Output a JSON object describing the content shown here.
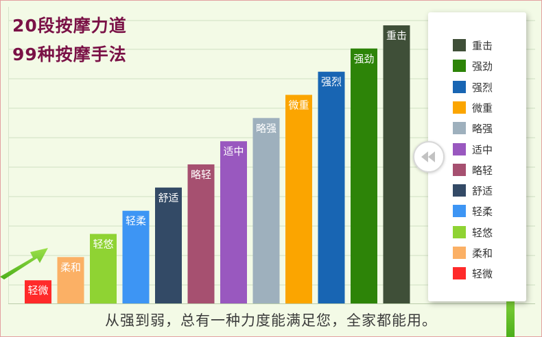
{
  "headline": {
    "line1": "20段按摩力道",
    "line2": "99种按摩手法"
  },
  "caption": "从强到弱，总有一种力度能满足您，全家都能用。",
  "chart_data": {
    "type": "bar",
    "categories": [
      "轻微",
      "柔和",
      "轻悠",
      "轻柔",
      "舒适",
      "略轻",
      "适中",
      "略强",
      "微重",
      "强烈",
      "强劲",
      "重击"
    ],
    "values": [
      1,
      2,
      3,
      4,
      5,
      6,
      7,
      8,
      9,
      10,
      11,
      12
    ],
    "colors": [
      "#ff2a2a",
      "#fbb065",
      "#8fd333",
      "#3d95f4",
      "#334a66",
      "#a65070",
      "#9958bf",
      "#9eb0bd",
      "#fba500",
      "#1865b3",
      "#2d8408",
      "#3f4f38"
    ],
    "legend": {
      "placement": "right",
      "entries": [
        "重击",
        "强劲",
        "强烈",
        "微重",
        "略强",
        "适中",
        "略轻",
        "舒适",
        "轻柔",
        "轻悠",
        "柔和",
        "轻微"
      ]
    },
    "grid": true,
    "ylim": [
      0,
      12
    ],
    "title": "",
    "xlabel": "",
    "ylabel": ""
  },
  "icons": {
    "collapse_button": "double-chevron-left-icon",
    "arrows": [
      "green-arrow-icon",
      "green-arrow-icon"
    ]
  }
}
